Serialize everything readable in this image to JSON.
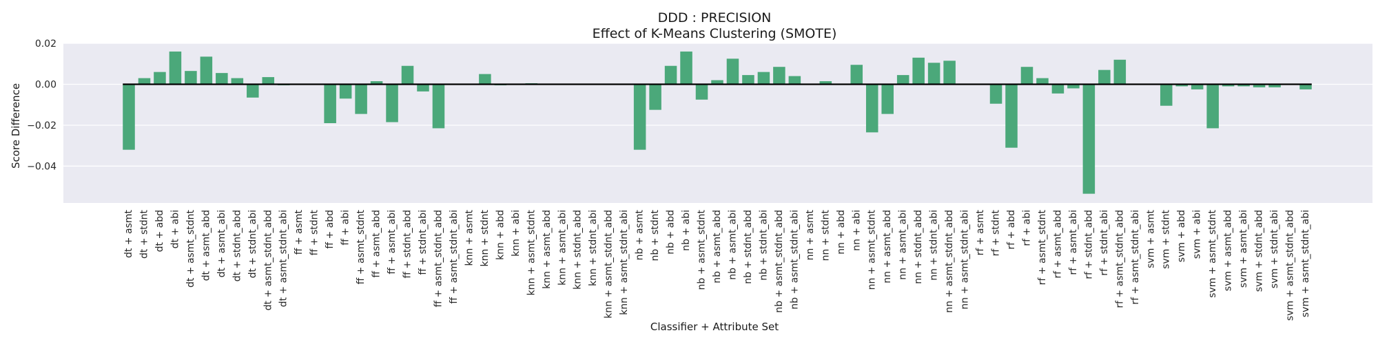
{
  "chart_data": {
    "type": "bar",
    "title": "DDD : PRECISION",
    "subtitle": "Effect of K-Means Clustering (SMOTE)",
    "xlabel": "Classifier + Attribute Set",
    "ylabel": "Score Difference",
    "ylim": [
      -0.058,
      0.02
    ],
    "yticks": [
      0.02,
      0.0,
      -0.02,
      -0.04
    ],
    "ytick_labels": [
      "0.02",
      "0.00",
      "−0.02",
      "−0.04"
    ],
    "grid": true,
    "legend": "none",
    "colors": {
      "bar": "#4ba87a",
      "background": "#eaeaf2",
      "grid": "#ffffff",
      "zero_line": "#000000"
    },
    "categories": [
      "dt + asmt",
      "dt + stdnt",
      "dt + abd",
      "dt + abi",
      "dt + asmt_stdnt",
      "dt + asmt_abd",
      "dt + asmt_abi",
      "dt + stdnt_abd",
      "dt + stdnt_abi",
      "dt + asmt_stdnt_abd",
      "dt + asmt_stdnt_abi",
      "ff + asmt",
      "ff + stdnt",
      "ff + abd",
      "ff + abi",
      "ff + asmt_stdnt",
      "ff + asmt_abd",
      "ff + asmt_abi",
      "ff + stdnt_abd",
      "ff + stdnt_abi",
      "ff + asmt_stdnt_abd",
      "ff + asmt_stdnt_abi",
      "knn + asmt",
      "knn + stdnt",
      "knn + abd",
      "knn + abi",
      "knn + asmt_stdnt",
      "knn + asmt_abd",
      "knn + asmt_abi",
      "knn + stdnt_abd",
      "knn + stdnt_abi",
      "knn + asmt_stdnt_abd",
      "knn + asmt_stdnt_abi",
      "nb + asmt",
      "nb + stdnt",
      "nb + abd",
      "nb + abi",
      "nb + asmt_stdnt",
      "nb + asmt_abd",
      "nb + asmt_abi",
      "nb + stdnt_abd",
      "nb + stdnt_abi",
      "nb + asmt_stdnt_abd",
      "nb + asmt_stdnt_abi",
      "nn + asmt",
      "nn + stdnt",
      "nn + abd",
      "nn + abi",
      "nn + asmt_stdnt",
      "nn + asmt_abd",
      "nn + asmt_abi",
      "nn + stdnt_abd",
      "nn + stdnt_abi",
      "nn + asmt_stdnt_abd",
      "nn + asmt_stdnt_abi",
      "rf + asmt",
      "rf + stdnt",
      "rf + abd",
      "rf + abi",
      "rf + asmt_stdnt",
      "rf + asmt_abd",
      "rf + asmt_abi",
      "rf + stdnt_abd",
      "rf + stdnt_abi",
      "rf + asmt_stdnt_abd",
      "rf + asmt_stdnt_abi",
      "svm + asmt",
      "svm + stdnt",
      "svm + abd",
      "svm + abi",
      "svm + asmt_stdnt",
      "svm + asmt_abd",
      "svm + asmt_abi",
      "svm + stdnt_abd",
      "svm + stdnt_abi",
      "svm + asmt_stdnt_abd",
      "svm + asmt_stdnt_abi"
    ],
    "values": [
      -0.032,
      0.003,
      0.006,
      0.016,
      0.0065,
      0.0135,
      0.0055,
      0.003,
      -0.0065,
      0.0035,
      -0.0005,
      0.0,
      0.0,
      -0.019,
      -0.007,
      -0.0145,
      0.0015,
      -0.0185,
      0.009,
      -0.0035,
      -0.0215,
      0.0,
      0.0,
      0.005,
      -0.0005,
      0.0,
      0.0005,
      0.0,
      0.0,
      0.0,
      0.0,
      0.0,
      0.0,
      -0.032,
      -0.0125,
      0.009,
      0.016,
      -0.0075,
      0.002,
      0.0125,
      0.0045,
      0.006,
      0.0085,
      0.004,
      0.0,
      0.0015,
      0.0,
      0.0095,
      -0.0235,
      -0.0145,
      0.0045,
      0.013,
      0.0105,
      0.0115,
      0.0,
      0.0,
      -0.0095,
      -0.031,
      0.0085,
      0.003,
      -0.0045,
      -0.002,
      -0.0535,
      0.007,
      0.012,
      0.0,
      0.0,
      -0.0105,
      -0.001,
      -0.0025,
      -0.0215,
      -0.001,
      -0.001,
      -0.0015,
      -0.0015,
      0.0,
      -0.0025
    ]
  }
}
